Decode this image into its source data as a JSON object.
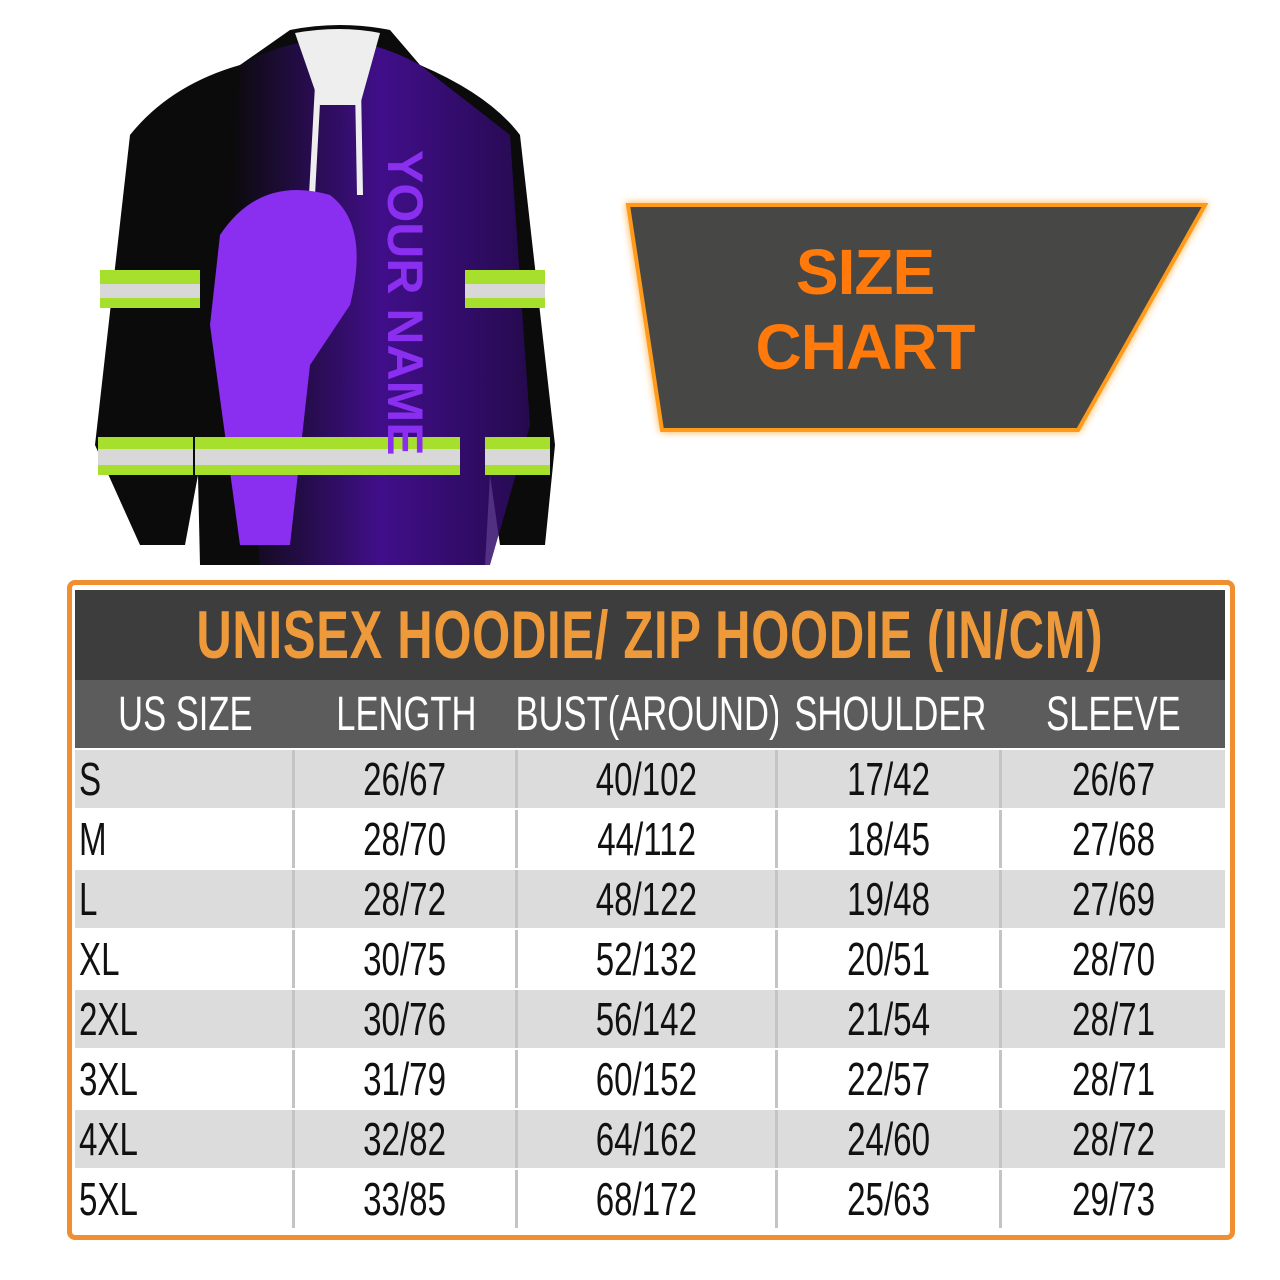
{
  "product_image": {
    "print_text": "YOUR NAME",
    "colors": {
      "body": "#0a0a0a",
      "accent": "#7a1fe0",
      "reflective_green": "#a6e02c",
      "reflective_silver": "#d8d8d8"
    }
  },
  "banner": {
    "line1": "SIZE",
    "line2": "CHART",
    "colors": {
      "background": "#474745",
      "text": "#ff7a0a",
      "glow": "#ff9a1a"
    }
  },
  "size_table": {
    "title": "UNISEX HOODIE/ ZIP HOODIE (IN/CM)",
    "columns": [
      "US SIZE",
      "LENGTH",
      "BUST(AROUND)",
      "SHOULDER",
      "SLEEVE"
    ],
    "rows": [
      [
        "S",
        "26/67",
        "40/102",
        "17/42",
        "26/67"
      ],
      [
        "M",
        "28/70",
        "44/112",
        "18/45",
        "27/68"
      ],
      [
        "L",
        "28/72",
        "48/122",
        "19/48",
        "27/69"
      ],
      [
        "XL",
        "30/75",
        "52/132",
        "20/51",
        "28/70"
      ],
      [
        "2XL",
        "30/76",
        "56/142",
        "21/54",
        "28/71"
      ],
      [
        "3XL",
        "31/79",
        "60/152",
        "22/57",
        "28/71"
      ],
      [
        "4XL",
        "32/82",
        "64/162",
        "24/60",
        "28/72"
      ],
      [
        "5XL",
        "33/85",
        "68/172",
        "25/63",
        "29/73"
      ]
    ],
    "colors": {
      "border": "#ef8f2f",
      "title_band": "#3d3d3d",
      "title_text": "#ef9a3a",
      "header_band": "#5c5c5c"
    }
  }
}
